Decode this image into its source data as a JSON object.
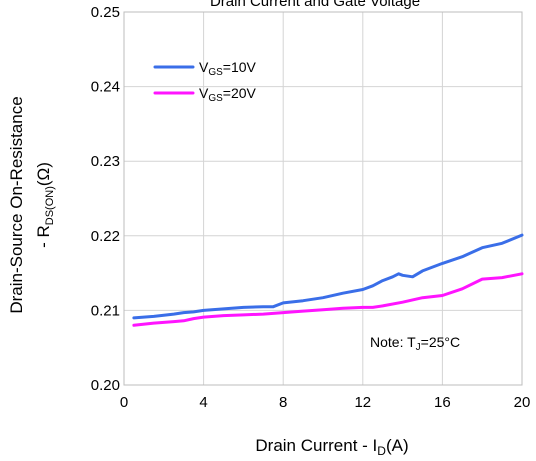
{
  "chart_data": {
    "type": "line",
    "title": "Drain Current and Gate Voltage",
    "xlabel_main": "Drain Current - I",
    "xlabel_sub": "D",
    "xlabel_unit": "(A)",
    "ylabel_line1": "Drain-Source On-Resistance",
    "ylabel_line2_main": "- R",
    "ylabel_line2_sub": "DS(ON)",
    "ylabel_line2_unit": "(Ω)",
    "xlim": [
      0,
      20
    ],
    "ylim": [
      0.2,
      0.25
    ],
    "x_ticks": [
      0,
      4,
      8,
      12,
      16,
      20
    ],
    "x_tick_labels": [
      "0",
      "4",
      "8",
      "12",
      "16",
      "20"
    ],
    "y_ticks": [
      0.2,
      0.21,
      0.22,
      0.23,
      0.24,
      0.25
    ],
    "y_tick_labels": [
      "0.20",
      "0.21",
      "0.22",
      "0.23",
      "0.24",
      "0.25"
    ],
    "grid": true,
    "legend_position": "top-left",
    "note_main": "Note: T",
    "note_sub": "J",
    "note_rest": "=25°C",
    "series": [
      {
        "name": "VGS=10V",
        "legend_main": "V",
        "legend_sub": "GS",
        "legend_rest": "=10V",
        "color": "#3a6ee8",
        "x": [
          0.5,
          1.5,
          2.5,
          3.0,
          3.5,
          4.0,
          5.0,
          6.0,
          7.0,
          7.5,
          8.0,
          9.0,
          10.0,
          11.0,
          12.0,
          12.5,
          13.0,
          13.5,
          13.8,
          14.0,
          14.5,
          15.0,
          16.0,
          17.0,
          18.0,
          19.0,
          20.0
        ],
        "values": [
          0.209,
          0.2092,
          0.2095,
          0.2097,
          0.2098,
          0.21,
          0.2102,
          0.2104,
          0.2105,
          0.2105,
          0.211,
          0.2113,
          0.2117,
          0.2123,
          0.2128,
          0.2133,
          0.214,
          0.2145,
          0.2149,
          0.2147,
          0.2145,
          0.2153,
          0.2163,
          0.2172,
          0.2184,
          0.219,
          0.2201
        ]
      },
      {
        "name": "VGS=20V",
        "legend_main": "V",
        "legend_sub": "GS",
        "legend_rest": "=20V",
        "color": "#ff14ff",
        "x": [
          0.5,
          1.5,
          2.5,
          3.0,
          3.5,
          4.0,
          5.0,
          6.0,
          7.0,
          8.0,
          9.0,
          10.0,
          11.0,
          12.0,
          12.5,
          13.0,
          14.0,
          15.0,
          16.0,
          17.0,
          18.0,
          19.0,
          20.0
        ],
        "values": [
          0.208,
          0.2083,
          0.2085,
          0.2086,
          0.2089,
          0.2091,
          0.2093,
          0.2094,
          0.2095,
          0.2097,
          0.2099,
          0.2101,
          0.2103,
          0.2104,
          0.2104,
          0.2106,
          0.2111,
          0.2117,
          0.212,
          0.2129,
          0.2142,
          0.2144,
          0.2149
        ]
      }
    ]
  }
}
